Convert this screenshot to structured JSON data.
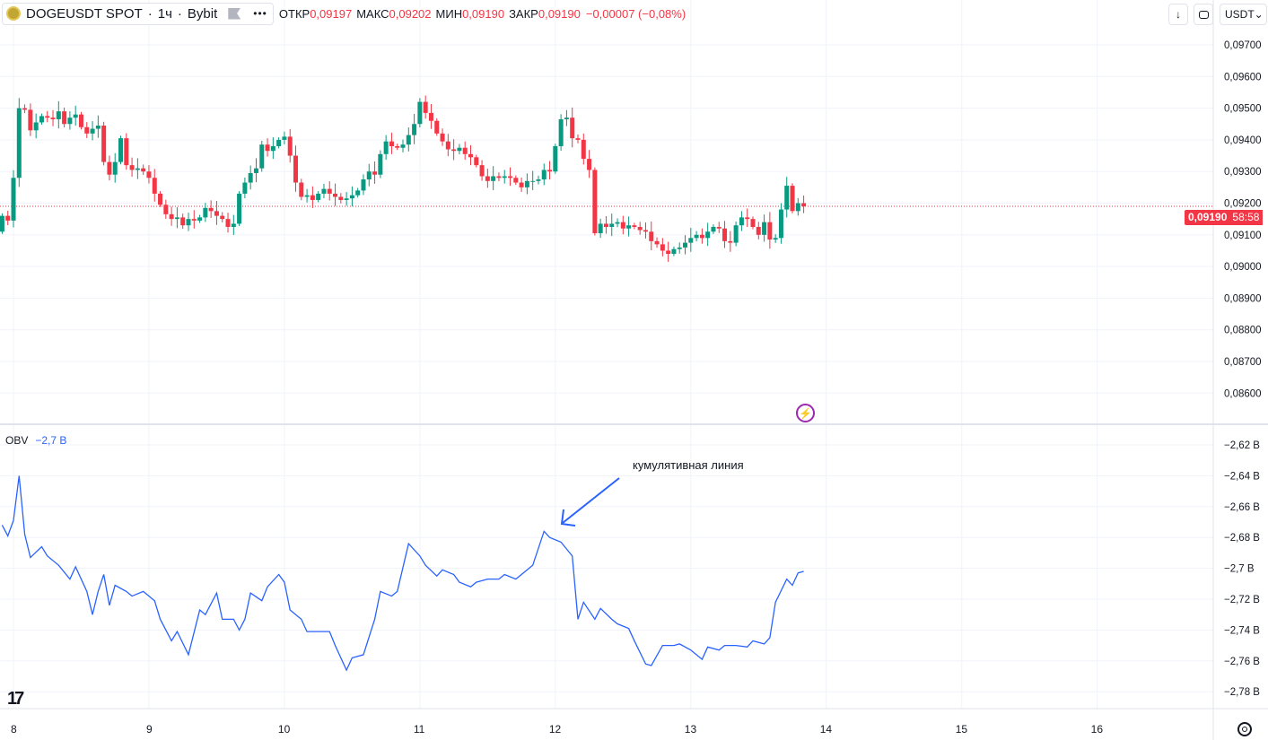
{
  "header": {
    "symbol": "DOGEUSDT SPOT",
    "interval": "1ч",
    "exchange": "Bybit",
    "sep": "·",
    "more": "•••",
    "ohlc": [
      {
        "label": "ОТКР",
        "value": "0,09197"
      },
      {
        "label": "МАКС",
        "value": "0,09202"
      },
      {
        "label": "МИН",
        "value": "0,09190"
      },
      {
        "label": "ЗАКР",
        "value": "0,09190"
      }
    ],
    "change": "−0,00007 (−0,08%)"
  },
  "toolbar": {
    "scroll_icon": "↓",
    "currency": "USDT",
    "chevron": "⌄"
  },
  "last_price": {
    "value": "0,09190",
    "countdown": "58:58"
  },
  "obv_legend": {
    "name": "OBV",
    "value": "−2,7 B"
  },
  "annotation": "кумулятивная линия",
  "colors": {
    "up": "#089981",
    "down": "#f23645",
    "obv": "#2962ff",
    "grid": "#f0f3fa",
    "annotation_arrow": "#2962ff"
  },
  "chart_data": [
    {
      "type": "candlestick",
      "title": "DOGEUSDT SPOT · 1ч · Bybit",
      "x_start_hour_offset": -2,
      "x_unit": "hour",
      "x_ticks": [
        "8",
        "9",
        "10",
        "11",
        "12",
        "13",
        "14",
        "15",
        "16"
      ],
      "y_ticks": [
        "0,09700",
        "0,09600",
        "0,09500",
        "0,09400",
        "0,09300",
        "0,09200",
        "0,09100",
        "0,09000",
        "0,08900",
        "0,08800",
        "0,08700",
        "0,08600"
      ],
      "ylim": [
        0.0855,
        0.0983
      ],
      "first_open": 0.0911,
      "close": [
        0.0916,
        0.09145,
        0.0928,
        0.095,
        0.09495,
        0.0943,
        0.09455,
        0.09475,
        0.0947,
        0.09465,
        0.0949,
        0.0945,
        0.0947,
        0.0948,
        0.0944,
        0.0942,
        0.09435,
        0.09445,
        0.0933,
        0.0929,
        0.0933,
        0.09405,
        0.0932,
        0.09305,
        0.0931,
        0.093,
        0.0928,
        0.0923,
        0.09195,
        0.09165,
        0.0915,
        0.09155,
        0.0913,
        0.0915,
        0.09145,
        0.09155,
        0.09185,
        0.09175,
        0.0916,
        0.0915,
        0.09125,
        0.09135,
        0.0923,
        0.09265,
        0.09295,
        0.0931,
        0.09385,
        0.09365,
        0.0938,
        0.094,
        0.0941,
        0.0935,
        0.09265,
        0.0922,
        0.09225,
        0.0921,
        0.0923,
        0.09245,
        0.0923,
        0.0922,
        0.0921,
        0.09215,
        0.09225,
        0.0924,
        0.09275,
        0.093,
        0.0929,
        0.09355,
        0.09395,
        0.0938,
        0.09375,
        0.09385,
        0.09415,
        0.0945,
        0.0952,
        0.09485,
        0.0946,
        0.0942,
        0.09395,
        0.0937,
        0.09365,
        0.09375,
        0.09355,
        0.09345,
        0.0932,
        0.09285,
        0.0927,
        0.09285,
        0.0928,
        0.09285,
        0.0928,
        0.09265,
        0.0925,
        0.0927,
        0.0927,
        0.09275,
        0.09305,
        0.093,
        0.0938,
        0.09465,
        0.0947,
        0.09405,
        0.094,
        0.0934,
        0.09305,
        0.09105,
        0.09135,
        0.09125,
        0.09135,
        0.0914,
        0.0912,
        0.0913,
        0.09125,
        0.09115,
        0.0911,
        0.0908,
        0.0907,
        0.0905,
        0.0904,
        0.09055,
        0.0906,
        0.09075,
        0.0909,
        0.091,
        0.0909,
        0.0911,
        0.09125,
        0.0912,
        0.0908,
        0.09075,
        0.0913,
        0.09155,
        0.0915,
        0.09125,
        0.091,
        0.0914,
        0.09085,
        0.0909,
        0.0918,
        0.09255,
        0.09175,
        0.092,
        0.0919
      ],
      "last": 0.0919
    },
    {
      "type": "line",
      "name": "OBV",
      "unit": "B",
      "y_ticks": [
        "−2,62 B",
        "−2,64 B",
        "−2,66 B",
        "−2,68 B",
        "−2,7 B",
        "−2,72 B",
        "−2,74 B",
        "−2,76 B",
        "−2,78 B"
      ],
      "ylim": [
        -2.79,
        -2.612
      ],
      "points_hour_value": [
        [
          -2,
          -2.672
        ],
        [
          -1,
          -2.679
        ],
        [
          0,
          -2.669
        ],
        [
          1,
          -2.64
        ],
        [
          2,
          -2.678
        ],
        [
          3,
          -2.693
        ],
        [
          5,
          -2.686
        ],
        [
          6,
          -2.692
        ],
        [
          8,
          -2.698
        ],
        [
          10,
          -2.707
        ],
        [
          11,
          -2.699
        ],
        [
          13,
          -2.715
        ],
        [
          14,
          -2.73
        ],
        [
          15,
          -2.715
        ],
        [
          16,
          -2.704
        ],
        [
          17,
          -2.724
        ],
        [
          18,
          -2.711
        ],
        [
          20,
          -2.715
        ],
        [
          21,
          -2.718
        ],
        [
          23,
          -2.715
        ],
        [
          25,
          -2.721
        ],
        [
          26,
          -2.733
        ],
        [
          28,
          -2.747
        ],
        [
          29,
          -2.741
        ],
        [
          31,
          -2.756
        ],
        [
          33,
          -2.727
        ],
        [
          34,
          -2.73
        ],
        [
          36,
          -2.716
        ],
        [
          37,
          -2.733
        ],
        [
          39,
          -2.733
        ],
        [
          40,
          -2.74
        ],
        [
          41,
          -2.733
        ],
        [
          42,
          -2.716
        ],
        [
          44,
          -2.721
        ],
        [
          45,
          -2.712
        ],
        [
          47,
          -2.704
        ],
        [
          48,
          -2.709
        ],
        [
          49,
          -2.727
        ],
        [
          51,
          -2.733
        ],
        [
          52,
          -2.741
        ],
        [
          54,
          -2.741
        ],
        [
          56,
          -2.741
        ],
        [
          57,
          -2.75
        ],
        [
          59,
          -2.766
        ],
        [
          60,
          -2.758
        ],
        [
          62,
          -2.756
        ],
        [
          64,
          -2.733
        ],
        [
          65,
          -2.715
        ],
        [
          67,
          -2.718
        ],
        [
          68,
          -2.715
        ],
        [
          70,
          -2.684
        ],
        [
          72,
          -2.692
        ],
        [
          73,
          -2.698
        ],
        [
          75,
          -2.705
        ],
        [
          76,
          -2.701
        ],
        [
          78,
          -2.704
        ],
        [
          79,
          -2.709
        ],
        [
          81,
          -2.712
        ],
        [
          82,
          -2.709
        ],
        [
          84,
          -2.707
        ],
        [
          86,
          -2.707
        ],
        [
          87,
          -2.704
        ],
        [
          89,
          -2.707
        ],
        [
          91,
          -2.701
        ],
        [
          92,
          -2.698
        ],
        [
          94,
          -2.676
        ],
        [
          95,
          -2.68
        ],
        [
          97,
          -2.683
        ],
        [
          99,
          -2.692
        ],
        [
          100,
          -2.733
        ],
        [
          101,
          -2.722
        ],
        [
          103,
          -2.733
        ],
        [
          104,
          -2.726
        ],
        [
          106,
          -2.733
        ],
        [
          107,
          -2.736
        ],
        [
          109,
          -2.739
        ],
        [
          110,
          -2.747
        ],
        [
          112,
          -2.762
        ],
        [
          113,
          -2.763
        ],
        [
          115,
          -2.75
        ],
        [
          117,
          -2.75
        ],
        [
          118,
          -2.749
        ],
        [
          120,
          -2.753
        ],
        [
          122,
          -2.759
        ],
        [
          123,
          -2.751
        ],
        [
          125,
          -2.753
        ],
        [
          126,
          -2.75
        ],
        [
          128,
          -2.75
        ],
        [
          130,
          -2.751
        ],
        [
          131,
          -2.747
        ],
        [
          133,
          -2.749
        ],
        [
          134,
          -2.745
        ],
        [
          135,
          -2.722
        ],
        [
          137,
          -2.707
        ],
        [
          138,
          -2.711
        ],
        [
          139,
          -2.703
        ],
        [
          140,
          -2.702
        ]
      ]
    }
  ]
}
